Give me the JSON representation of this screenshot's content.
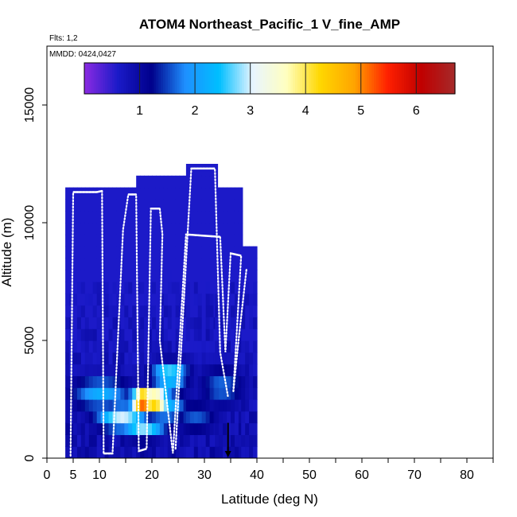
{
  "chart_data": {
    "type": "heatmap",
    "title": "ATOM4 Northeast_Pacific_1 V_fine_AMP",
    "subtitle_flights": "Flts: 1,2",
    "subtitle_dates": "MMDD: 0424,0427",
    "xlabel": "Latitude (deg N)",
    "ylabel": "Altitude (m)",
    "xlim": [
      0,
      85
    ],
    "ylim": [
      0,
      17500
    ],
    "x_ticks_labeled": [
      0,
      5,
      10,
      20,
      30,
      40,
      50,
      60,
      70,
      80
    ],
    "x_ticks_minor": [
      15,
      25,
      35,
      45,
      55,
      65,
      75,
      85
    ],
    "y_ticks": [
      0,
      5000,
      10000,
      15000
    ],
    "colorbar": {
      "min": 0,
      "max": 6.7,
      "ticks": [
        1,
        2,
        3,
        4,
        5,
        6
      ],
      "stops": [
        "#8b2be2",
        "#1a1ac8",
        "#00008b",
        "#1e90ff",
        "#00bfff",
        "#e8f4ff",
        "#ffffc0",
        "#ffd700",
        "#ffa500",
        "#ff2000",
        "#c00000",
        "#a52a2a"
      ]
    },
    "grid": {
      "x_step": 0.75,
      "y_step": 500
    },
    "columns": [
      {
        "lat_min": 3.5,
        "lat_max": 8.0,
        "alt_top": 11500
      },
      {
        "lat_min": 8.0,
        "lat_max": 12.5,
        "alt_top": 11500
      },
      {
        "lat_min": 12.5,
        "lat_max": 17.0,
        "alt_top": 11500
      },
      {
        "lat_min": 17.0,
        "lat_max": 21.5,
        "alt_top": 12000
      },
      {
        "lat_min": 21.5,
        "lat_max": 26.5,
        "alt_top": 11800
      },
      {
        "lat_min": 26.5,
        "lat_max": 32.0,
        "alt_top": 12500
      },
      {
        "lat_min": 32.0,
        "lat_max": 37.0,
        "alt_top": 11200
      },
      {
        "lat_min": 37.0,
        "lat_max": 39.5,
        "alt_top": 9000
      }
    ],
    "hotspots": [
      {
        "lat": 18.0,
        "alt": 2200,
        "value": 6.4,
        "lat_sigma": 1.6,
        "alt_sigma": 320
      },
      {
        "lat": 20.0,
        "alt": 2200,
        "value": 5.0,
        "lat_sigma": 2.2,
        "alt_sigma": 380
      },
      {
        "lat": 14.0,
        "alt": 1500,
        "value": 3.2,
        "lat_sigma": 3.5,
        "alt_sigma": 400
      },
      {
        "lat": 18.0,
        "alt": 1000,
        "value": 3.0,
        "lat_sigma": 3.0,
        "alt_sigma": 300
      },
      {
        "lat": 23.0,
        "alt": 3300,
        "value": 3.1,
        "lat_sigma": 2.5,
        "alt_sigma": 380
      },
      {
        "lat": 10.0,
        "alt": 2500,
        "value": 2.4,
        "lat_sigma": 4.0,
        "alt_sigma": 500
      },
      {
        "lat": 22.0,
        "alt": 2000,
        "value": 2.6,
        "lat_sigma": 3.0,
        "alt_sigma": 500
      },
      {
        "lat": 33.0,
        "alt": 2800,
        "value": 1.9,
        "lat_sigma": 3.0,
        "alt_sigma": 600
      },
      {
        "lat": 28.0,
        "alt": 1500,
        "value": 1.8,
        "lat_sigma": 3.0,
        "alt_sigma": 500
      }
    ],
    "flight_track": [
      [
        4.5,
        100
      ],
      [
        5.0,
        11300
      ],
      [
        9.5,
        11300
      ],
      [
        10.5,
        11350
      ],
      [
        10.8,
        200
      ],
      [
        12.5,
        200
      ],
      [
        14.5,
        9700
      ],
      [
        15.5,
        11200
      ],
      [
        17.0,
        11200
      ],
      [
        17.5,
        300
      ],
      [
        19.0,
        400
      ],
      [
        19.8,
        10600
      ],
      [
        21.5,
        10600
      ],
      [
        22.0,
        9500
      ],
      [
        21.5,
        5000
      ],
      [
        24.0,
        200
      ],
      [
        26.5,
        9500
      ],
      [
        33.0,
        9400
      ],
      [
        34.0,
        4500
      ],
      [
        35.0,
        8700
      ],
      [
        37.0,
        8600
      ],
      [
        35.5,
        2800
      ],
      [
        36.5,
        5000
      ],
      [
        38.0,
        8000
      ]
    ],
    "flight_track_2": [
      [
        24.5,
        400
      ],
      [
        27.5,
        12300
      ],
      [
        32.0,
        12300
      ],
      [
        33.0,
        4500
      ],
      [
        34.5,
        2600
      ]
    ],
    "marker": {
      "lat": 34.5,
      "alt": 600,
      "label": "arrow-down"
    }
  }
}
